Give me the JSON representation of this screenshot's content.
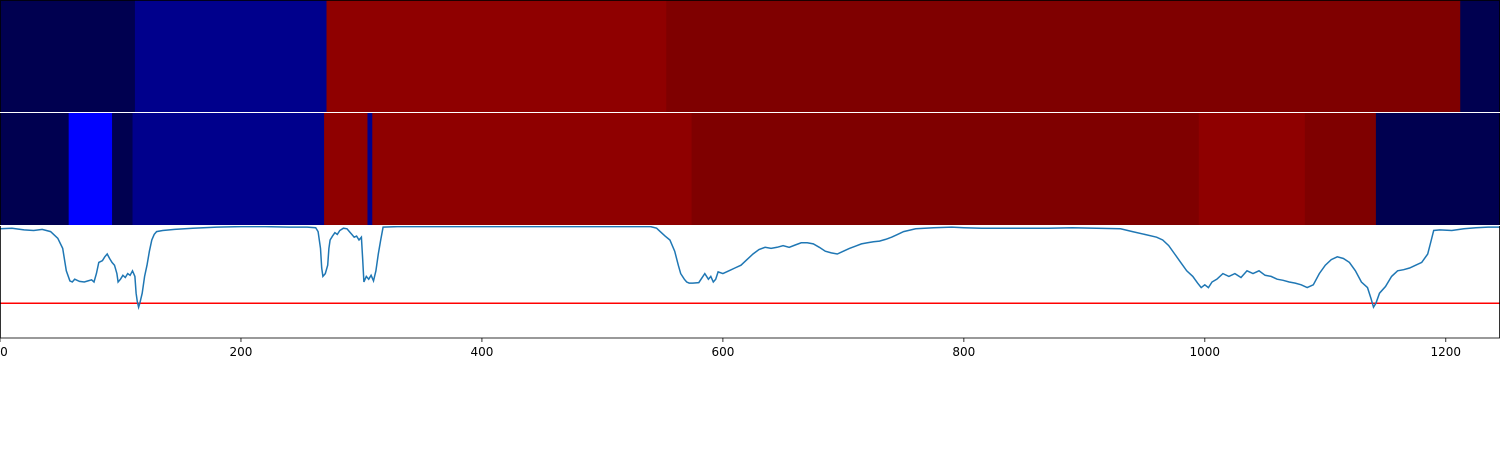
{
  "chart_data": {
    "type": "heatmap",
    "xlim": [
      0,
      1245
    ],
    "grid": false,
    "x_ticks": [
      0,
      200,
      400,
      600,
      800,
      1000,
      1200
    ],
    "x_tick_labels": [
      "0",
      "200",
      "400",
      "600",
      "800",
      "1000",
      "1200"
    ],
    "bands": [
      {
        "segments": [
          {
            "start": 0,
            "end": 112,
            "color": "#000050"
          },
          {
            "start": 112,
            "end": 271,
            "color": "#00008c"
          },
          {
            "start": 271,
            "end": 553,
            "color": "#8f0000"
          },
          {
            "start": 553,
            "end": 1212,
            "color": "#7f0000"
          },
          {
            "start": 1212,
            "end": 1245,
            "color": "#000050"
          }
        ]
      },
      {
        "segments": [
          {
            "start": 0,
            "end": 57,
            "color": "#000050"
          },
          {
            "start": 57,
            "end": 93,
            "color": "#0000ff"
          },
          {
            "start": 93,
            "end": 110,
            "color": "#000050"
          },
          {
            "start": 110,
            "end": 269,
            "color": "#00008c"
          },
          {
            "start": 269,
            "end": 305,
            "color": "#8f0000"
          },
          {
            "start": 305,
            "end": 309,
            "color": "#00008c"
          },
          {
            "start": 309,
            "end": 574,
            "color": "#8f0000"
          },
          {
            "start": 574,
            "end": 995,
            "color": "#7f0000"
          },
          {
            "start": 995,
            "end": 1083,
            "color": "#8f0000"
          },
          {
            "start": 1083,
            "end": 1142,
            "color": "#7f0000"
          },
          {
            "start": 1142,
            "end": 1245,
            "color": "#000050"
          }
        ]
      }
    ],
    "line": {
      "color": "#1f77b4",
      "ylim": [
        -1,
        1
      ],
      "threshold": -0.38,
      "threshold_color": "#ff0000",
      "points": [
        [
          0,
          0.95
        ],
        [
          10,
          0.96
        ],
        [
          20,
          0.93
        ],
        [
          28,
          0.92
        ],
        [
          35,
          0.94
        ],
        [
          42,
          0.9
        ],
        [
          48,
          0.78
        ],
        [
          52,
          0.6
        ],
        [
          55,
          0.2
        ],
        [
          58,
          0.02
        ],
        [
          60,
          0.0
        ],
        [
          62,
          0.05
        ],
        [
          66,
          0.01
        ],
        [
          70,
          0.0
        ],
        [
          73,
          0.02
        ],
        [
          76,
          0.04
        ],
        [
          78,
          0.0
        ],
        [
          80,
          0.15
        ],
        [
          82,
          0.35
        ],
        [
          85,
          0.38
        ],
        [
          87,
          0.45
        ],
        [
          89,
          0.5
        ],
        [
          91,
          0.42
        ],
        [
          93,
          0.35
        ],
        [
          95,
          0.3
        ],
        [
          97,
          0.15
        ],
        [
          98,
          0.0
        ],
        [
          100,
          0.05
        ],
        [
          102,
          0.12
        ],
        [
          104,
          0.08
        ],
        [
          106,
          0.15
        ],
        [
          108,
          0.12
        ],
        [
          110,
          0.2
        ],
        [
          112,
          0.1
        ],
        [
          113,
          -0.2
        ],
        [
          114,
          -0.35
        ],
        [
          115,
          -0.45
        ],
        [
          116,
          -0.38
        ],
        [
          118,
          -0.2
        ],
        [
          120,
          0.1
        ],
        [
          122,
          0.3
        ],
        [
          124,
          0.55
        ],
        [
          126,
          0.75
        ],
        [
          128,
          0.85
        ],
        [
          130,
          0.9
        ],
        [
          135,
          0.92
        ],
        [
          145,
          0.94
        ],
        [
          160,
          0.96
        ],
        [
          180,
          0.98
        ],
        [
          200,
          0.99
        ],
        [
          220,
          0.99
        ],
        [
          240,
          0.98
        ],
        [
          255,
          0.98
        ],
        [
          262,
          0.97
        ],
        [
          264,
          0.9
        ],
        [
          266,
          0.6
        ],
        [
          267,
          0.25
        ],
        [
          268,
          0.1
        ],
        [
          270,
          0.15
        ],
        [
          272,
          0.3
        ],
        [
          273,
          0.6
        ],
        [
          274,
          0.75
        ],
        [
          276,
          0.82
        ],
        [
          278,
          0.88
        ],
        [
          280,
          0.85
        ],
        [
          282,
          0.92
        ],
        [
          285,
          0.96
        ],
        [
          288,
          0.95
        ],
        [
          290,
          0.9
        ],
        [
          292,
          0.85
        ],
        [
          294,
          0.8
        ],
        [
          296,
          0.82
        ],
        [
          298,
          0.75
        ],
        [
          300,
          0.8
        ],
        [
          301,
          0.4
        ],
        [
          302,
          0.0
        ],
        [
          304,
          0.1
        ],
        [
          306,
          0.05
        ],
        [
          308,
          0.12
        ],
        [
          310,
          0.02
        ],
        [
          312,
          0.2
        ],
        [
          314,
          0.5
        ],
        [
          316,
          0.75
        ],
        [
          318,
          0.98
        ],
        [
          330,
          0.99
        ],
        [
          360,
          0.99
        ],
        [
          400,
          0.99
        ],
        [
          450,
          0.99
        ],
        [
          500,
          0.99
        ],
        [
          540,
          0.99
        ],
        [
          545,
          0.96
        ],
        [
          548,
          0.9
        ],
        [
          552,
          0.82
        ],
        [
          556,
          0.75
        ],
        [
          560,
          0.55
        ],
        [
          563,
          0.3
        ],
        [
          565,
          0.15
        ],
        [
          568,
          0.05
        ],
        [
          570,
          0.0
        ],
        [
          572,
          -0.02
        ],
        [
          575,
          -0.02
        ],
        [
          580,
          -0.01
        ],
        [
          585,
          0.15
        ],
        [
          588,
          0.05
        ],
        [
          590,
          0.1
        ],
        [
          592,
          0.0
        ],
        [
          594,
          0.05
        ],
        [
          596,
          0.18
        ],
        [
          600,
          0.15
        ],
        [
          605,
          0.2
        ],
        [
          610,
          0.25
        ],
        [
          615,
          0.3
        ],
        [
          620,
          0.4
        ],
        [
          625,
          0.5
        ],
        [
          630,
          0.58
        ],
        [
          635,
          0.62
        ],
        [
          640,
          0.6
        ],
        [
          645,
          0.62
        ],
        [
          650,
          0.65
        ],
        [
          655,
          0.62
        ],
        [
          660,
          0.66
        ],
        [
          665,
          0.7
        ],
        [
          670,
          0.7
        ],
        [
          675,
          0.68
        ],
        [
          680,
          0.62
        ],
        [
          685,
          0.55
        ],
        [
          690,
          0.52
        ],
        [
          695,
          0.5
        ],
        [
          700,
          0.55
        ],
        [
          705,
          0.6
        ],
        [
          710,
          0.64
        ],
        [
          715,
          0.68
        ],
        [
          720,
          0.7
        ],
        [
          725,
          0.72
        ],
        [
          730,
          0.73
        ],
        [
          735,
          0.76
        ],
        [
          740,
          0.8
        ],
        [
          745,
          0.85
        ],
        [
          750,
          0.9
        ],
        [
          760,
          0.95
        ],
        [
          775,
          0.97
        ],
        [
          790,
          0.98
        ],
        [
          800,
          0.97
        ],
        [
          815,
          0.96
        ],
        [
          830,
          0.96
        ],
        [
          850,
          0.96
        ],
        [
          870,
          0.96
        ],
        [
          890,
          0.97
        ],
        [
          910,
          0.96
        ],
        [
          930,
          0.95
        ],
        [
          940,
          0.9
        ],
        [
          950,
          0.85
        ],
        [
          960,
          0.8
        ],
        [
          965,
          0.75
        ],
        [
          970,
          0.65
        ],
        [
          975,
          0.5
        ],
        [
          980,
          0.35
        ],
        [
          985,
          0.2
        ],
        [
          990,
          0.1
        ],
        [
          994,
          -0.02
        ],
        [
          997,
          -0.1
        ],
        [
          1000,
          -0.05
        ],
        [
          1003,
          -0.1
        ],
        [
          1006,
          0.0
        ],
        [
          1010,
          0.05
        ],
        [
          1015,
          0.15
        ],
        [
          1020,
          0.1
        ],
        [
          1025,
          0.15
        ],
        [
          1030,
          0.08
        ],
        [
          1035,
          0.2
        ],
        [
          1040,
          0.15
        ],
        [
          1045,
          0.2
        ],
        [
          1050,
          0.12
        ],
        [
          1055,
          0.1
        ],
        [
          1060,
          0.05
        ],
        [
          1065,
          0.03
        ],
        [
          1070,
          0.0
        ],
        [
          1075,
          -0.02
        ],
        [
          1080,
          -0.05
        ],
        [
          1085,
          -0.1
        ],
        [
          1090,
          -0.05
        ],
        [
          1095,
          0.15
        ],
        [
          1100,
          0.3
        ],
        [
          1105,
          0.4
        ],
        [
          1110,
          0.45
        ],
        [
          1115,
          0.42
        ],
        [
          1120,
          0.35
        ],
        [
          1125,
          0.2
        ],
        [
          1130,
          0.0
        ],
        [
          1135,
          -0.1
        ],
        [
          1138,
          -0.3
        ],
        [
          1140,
          -0.45
        ],
        [
          1142,
          -0.38
        ],
        [
          1145,
          -0.2
        ],
        [
          1150,
          -0.08
        ],
        [
          1155,
          0.1
        ],
        [
          1160,
          0.2
        ],
        [
          1165,
          0.22
        ],
        [
          1170,
          0.25
        ],
        [
          1175,
          0.3
        ],
        [
          1180,
          0.35
        ],
        [
          1185,
          0.5
        ],
        [
          1188,
          0.75
        ],
        [
          1190,
          0.92
        ],
        [
          1195,
          0.93
        ],
        [
          1205,
          0.92
        ],
        [
          1215,
          0.95
        ],
        [
          1225,
          0.97
        ],
        [
          1235,
          0.98
        ],
        [
          1245,
          0.98
        ]
      ]
    }
  }
}
